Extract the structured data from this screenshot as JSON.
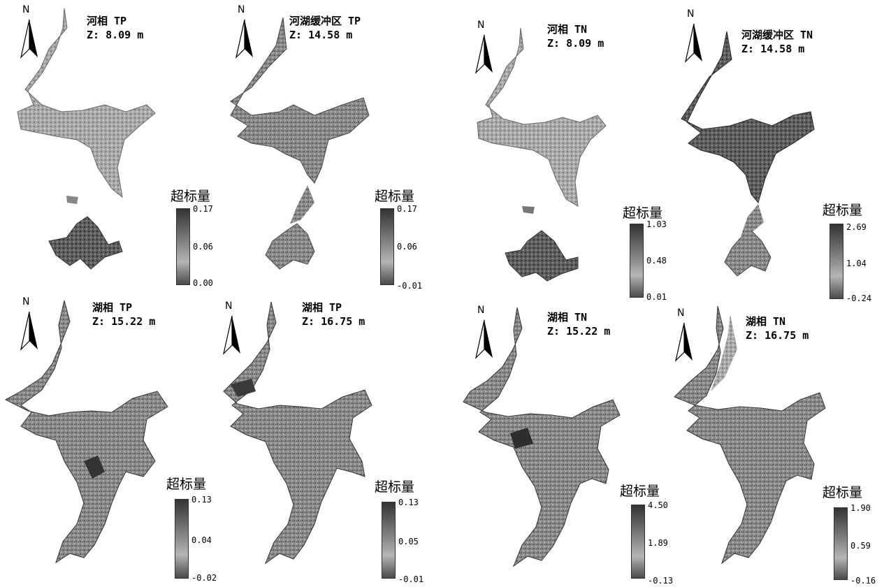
{
  "north_label": "N",
  "legend_title": "超标量",
  "panels": [
    {
      "phase": "河相 TP",
      "depth": "Z: 8.09 m",
      "ticks": [
        "0.17",
        "0.06",
        "0.00"
      ]
    },
    {
      "phase": "河湖缓冲区 TP",
      "depth": "Z: 14.58 m",
      "ticks": [
        "0.17",
        "0.06",
        "-0.01"
      ]
    },
    {
      "phase": "河相 TN",
      "depth": "Z: 8.09 m",
      "ticks": [
        "1.03",
        "0.48",
        "0.01"
      ]
    },
    {
      "phase": "河湖缓冲区 TN",
      "depth": "Z: 14.58 m",
      "ticks": [
        "2.69",
        "1.04",
        "-0.24"
      ]
    },
    {
      "phase": "湖相 TP",
      "depth": "Z: 15.22 m",
      "ticks": [
        "0.13",
        "0.04",
        "-0.02"
      ]
    },
    {
      "phase": "湖相 TP",
      "depth": "Z: 16.75 m",
      "ticks": [
        "0.13",
        "0.05",
        "-0.01"
      ]
    },
    {
      "phase": "湖相 TN",
      "depth": "Z: 15.22 m",
      "ticks": [
        "4.50",
        "1.89",
        "-0.13"
      ]
    },
    {
      "phase": "湖相 TN",
      "depth": "Z: 16.75 m",
      "ticks": [
        "1.90",
        "0.59",
        "-0.16"
      ]
    }
  ]
}
